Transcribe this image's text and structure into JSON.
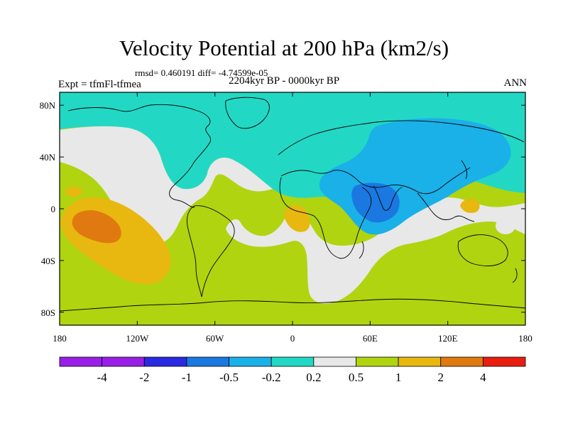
{
  "header": {
    "title": "Velocity Potential at 200 hPa (km2/s)",
    "stats": "rmsd= 0.460191 diff= -4.74599e-05",
    "subtitle": "2204kyr BP - 0000kyr BP",
    "left_label": "Expt = tfmFl-tfmea",
    "right_label": "ANN"
  },
  "chart_data": {
    "type": "heatmap",
    "title": "Velocity Potential at 200 hPa (km2/s)",
    "xlabel": "",
    "ylabel": "",
    "xlim": [
      -180,
      180
    ],
    "ylim": [
      -90,
      90
    ],
    "x_ticks": [
      {
        "value": -180,
        "label": "180"
      },
      {
        "value": -120,
        "label": "120W"
      },
      {
        "value": -60,
        "label": "60W"
      },
      {
        "value": 0,
        "label": "0"
      },
      {
        "value": 60,
        "label": "60E"
      },
      {
        "value": 120,
        "label": "120E"
      },
      {
        "value": 180,
        "label": "180"
      }
    ],
    "y_ticks": [
      {
        "value": 80,
        "label": "80N"
      },
      {
        "value": 40,
        "label": "40N"
      },
      {
        "value": 0,
        "label": "0"
      },
      {
        "value": -40,
        "label": "40S"
      },
      {
        "value": -80,
        "label": "80S"
      }
    ],
    "contour_levels": [
      -4,
      -2,
      -1,
      -0.5,
      -0.2,
      0.2,
      0.5,
      1,
      2,
      4
    ],
    "level_labels": [
      "-4",
      "-2",
      "-1",
      "-0.5",
      "-0.2",
      "0.2",
      "0.5",
      "1",
      "2",
      "4"
    ],
    "colors": [
      "#9a1fe6",
      "#2a2ae0",
      "#1a78e0",
      "#1ab0e8",
      "#22d8c4",
      "#e8e8e8",
      "#b0d410",
      "#e8b810",
      "#e07a10",
      "#e81e10"
    ],
    "background_level_color": "#b0d410",
    "regions": [
      {
        "name": "northern-band",
        "level": "-0.5 to -0.2",
        "color": "#22d8c4"
      },
      {
        "name": "eurasia-low",
        "level": "-1 to -0.5",
        "color": "#1ab0e8"
      },
      {
        "name": "indian-ocean-low",
        "level": "-2 to -1",
        "color": "#1a78e0"
      },
      {
        "name": "north-pacific-band",
        "level": "-0.2 to 0.2",
        "color": "#e8e8e8"
      },
      {
        "name": "south-atlantic-band",
        "level": "-0.2 to 0.2",
        "color": "#e8e8e8"
      },
      {
        "name": "central-pacific-high",
        "level": "0.5 to 1",
        "color": "#e8b810"
      },
      {
        "name": "central-pacific-peak",
        "level": "1 to 2",
        "color": "#e07a10"
      },
      {
        "name": "gulf-of-guinea-high",
        "level": "0.5 to 1",
        "color": "#e8b810"
      },
      {
        "name": "west-pacific-high",
        "level": "0.5 to 1",
        "color": "#e8b810"
      }
    ]
  }
}
